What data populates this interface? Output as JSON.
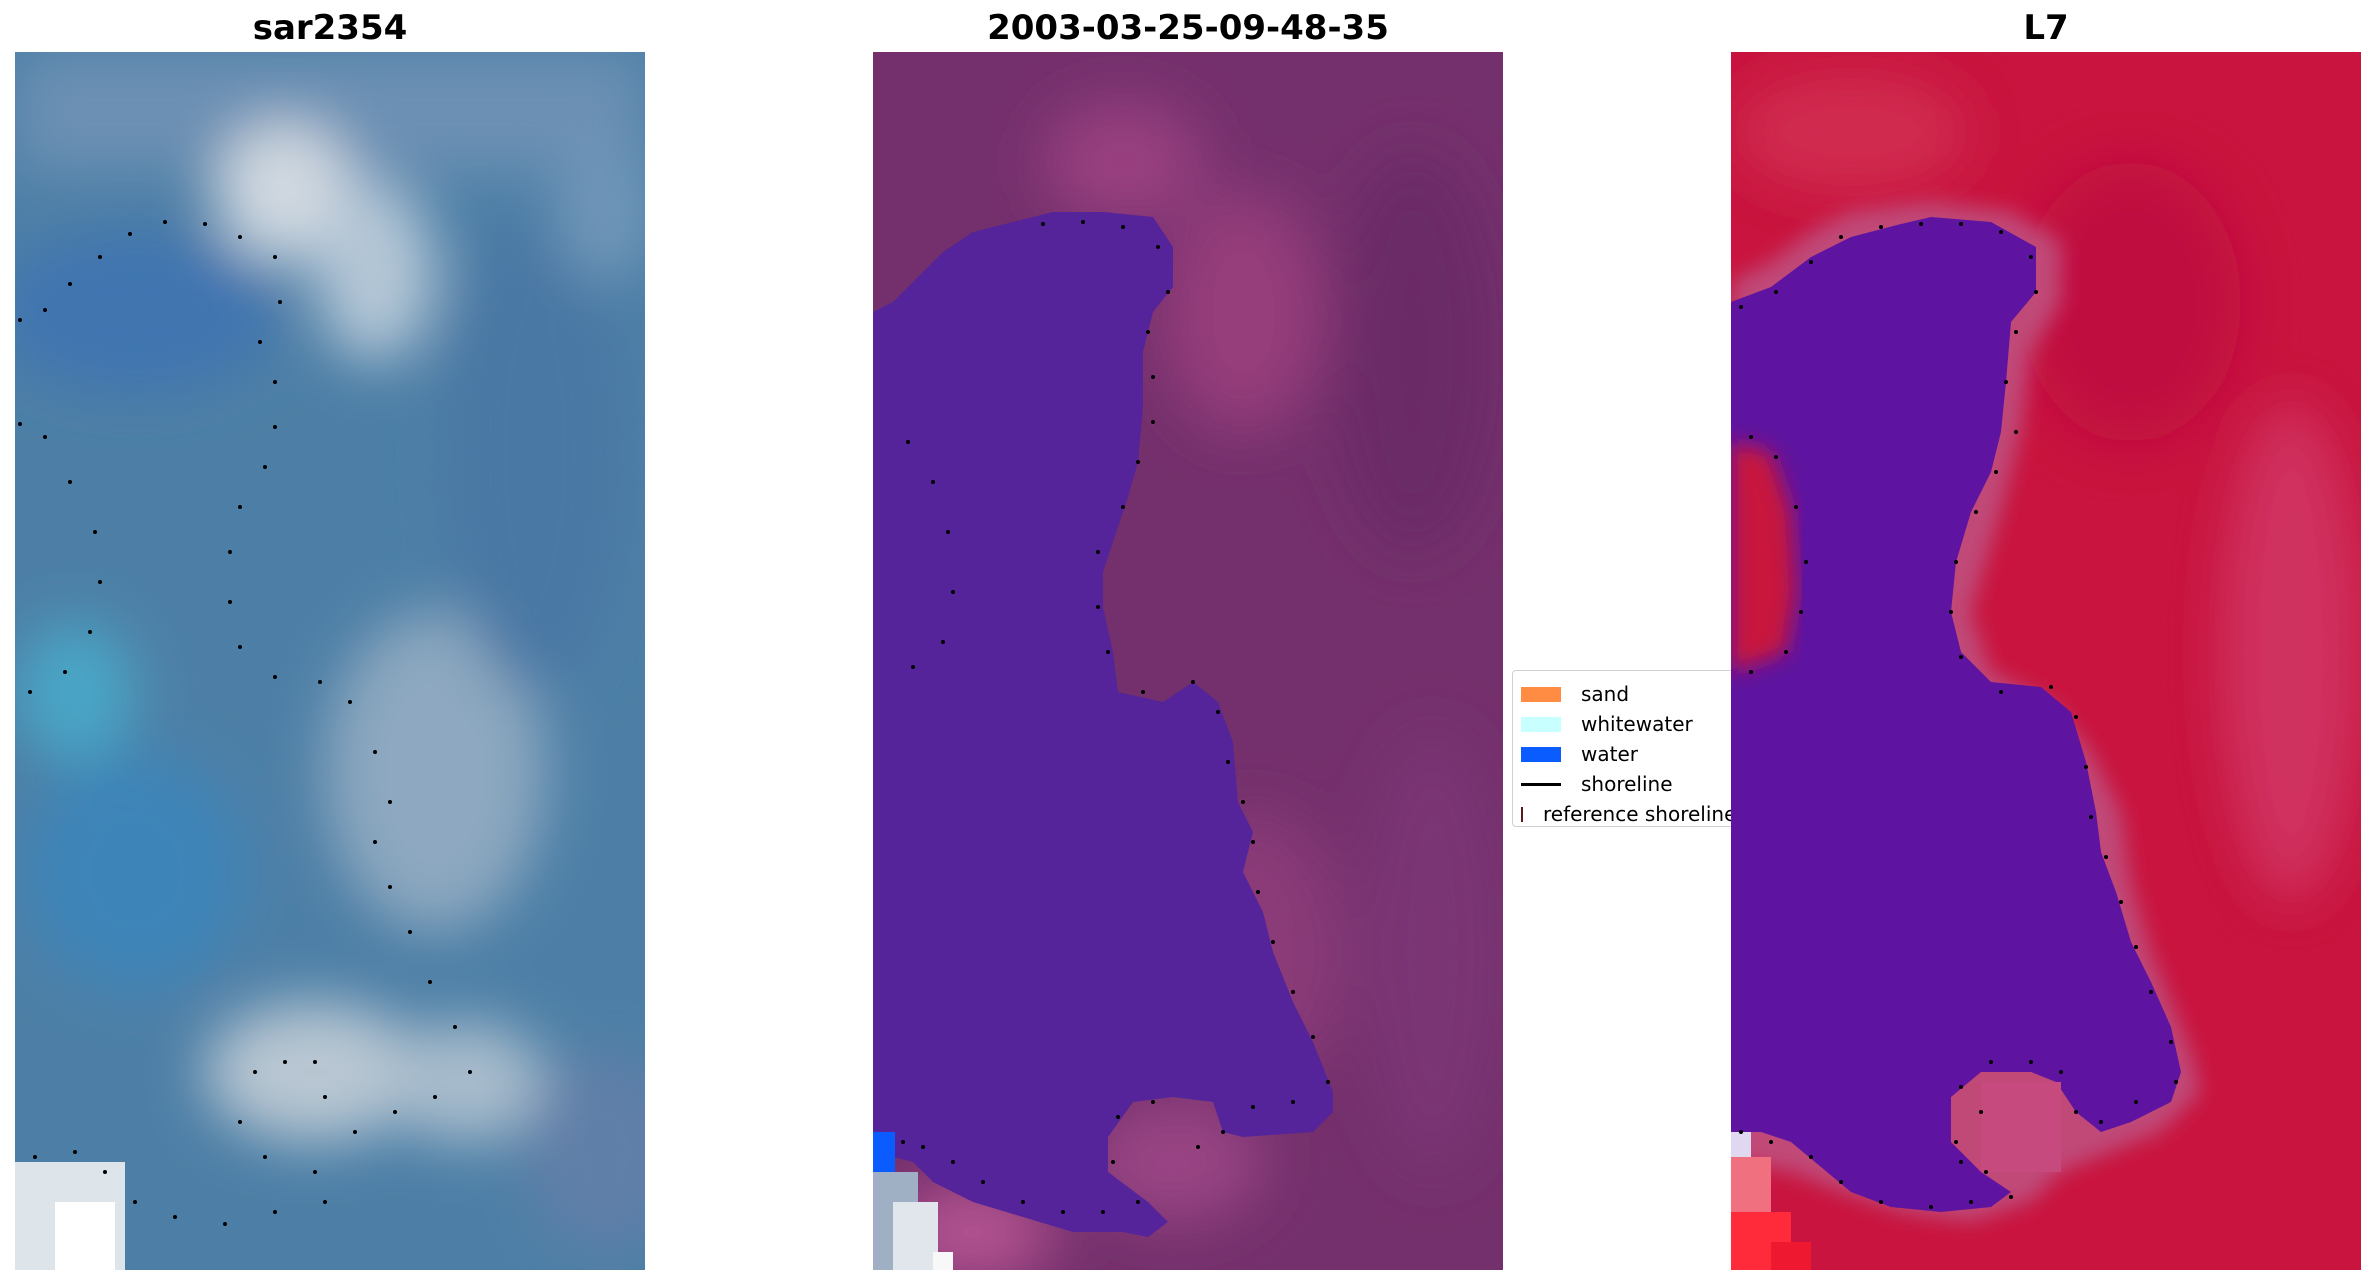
{
  "panels": [
    {
      "title": "sar2354"
    },
    {
      "title": "2003-03-25-09-48-35"
    },
    {
      "title": "L7"
    }
  ],
  "legend": {
    "items": [
      {
        "label": "sand",
        "color": "#ff8c42",
        "kind": "patch"
      },
      {
        "label": "whitewater",
        "color": "#c8ffff",
        "kind": "patch"
      },
      {
        "label": "water",
        "color": "#0a5cff",
        "kind": "patch"
      },
      {
        "label": "shoreline",
        "color": "#000000",
        "kind": "line"
      },
      {
        "label": "reference shoreline",
        "color": "#9b3a3a",
        "kind": "patch"
      }
    ]
  },
  "colors": {
    "rgb_base": "#4a7fa8",
    "rgb_light": "#b8c6d4",
    "classified_land": "#7a3270",
    "classified_water_mask": "#55249a",
    "ndwi_land": "#c8143e",
    "ndwi_water": "#5e14a0",
    "shoreline_dots": "#000000"
  }
}
